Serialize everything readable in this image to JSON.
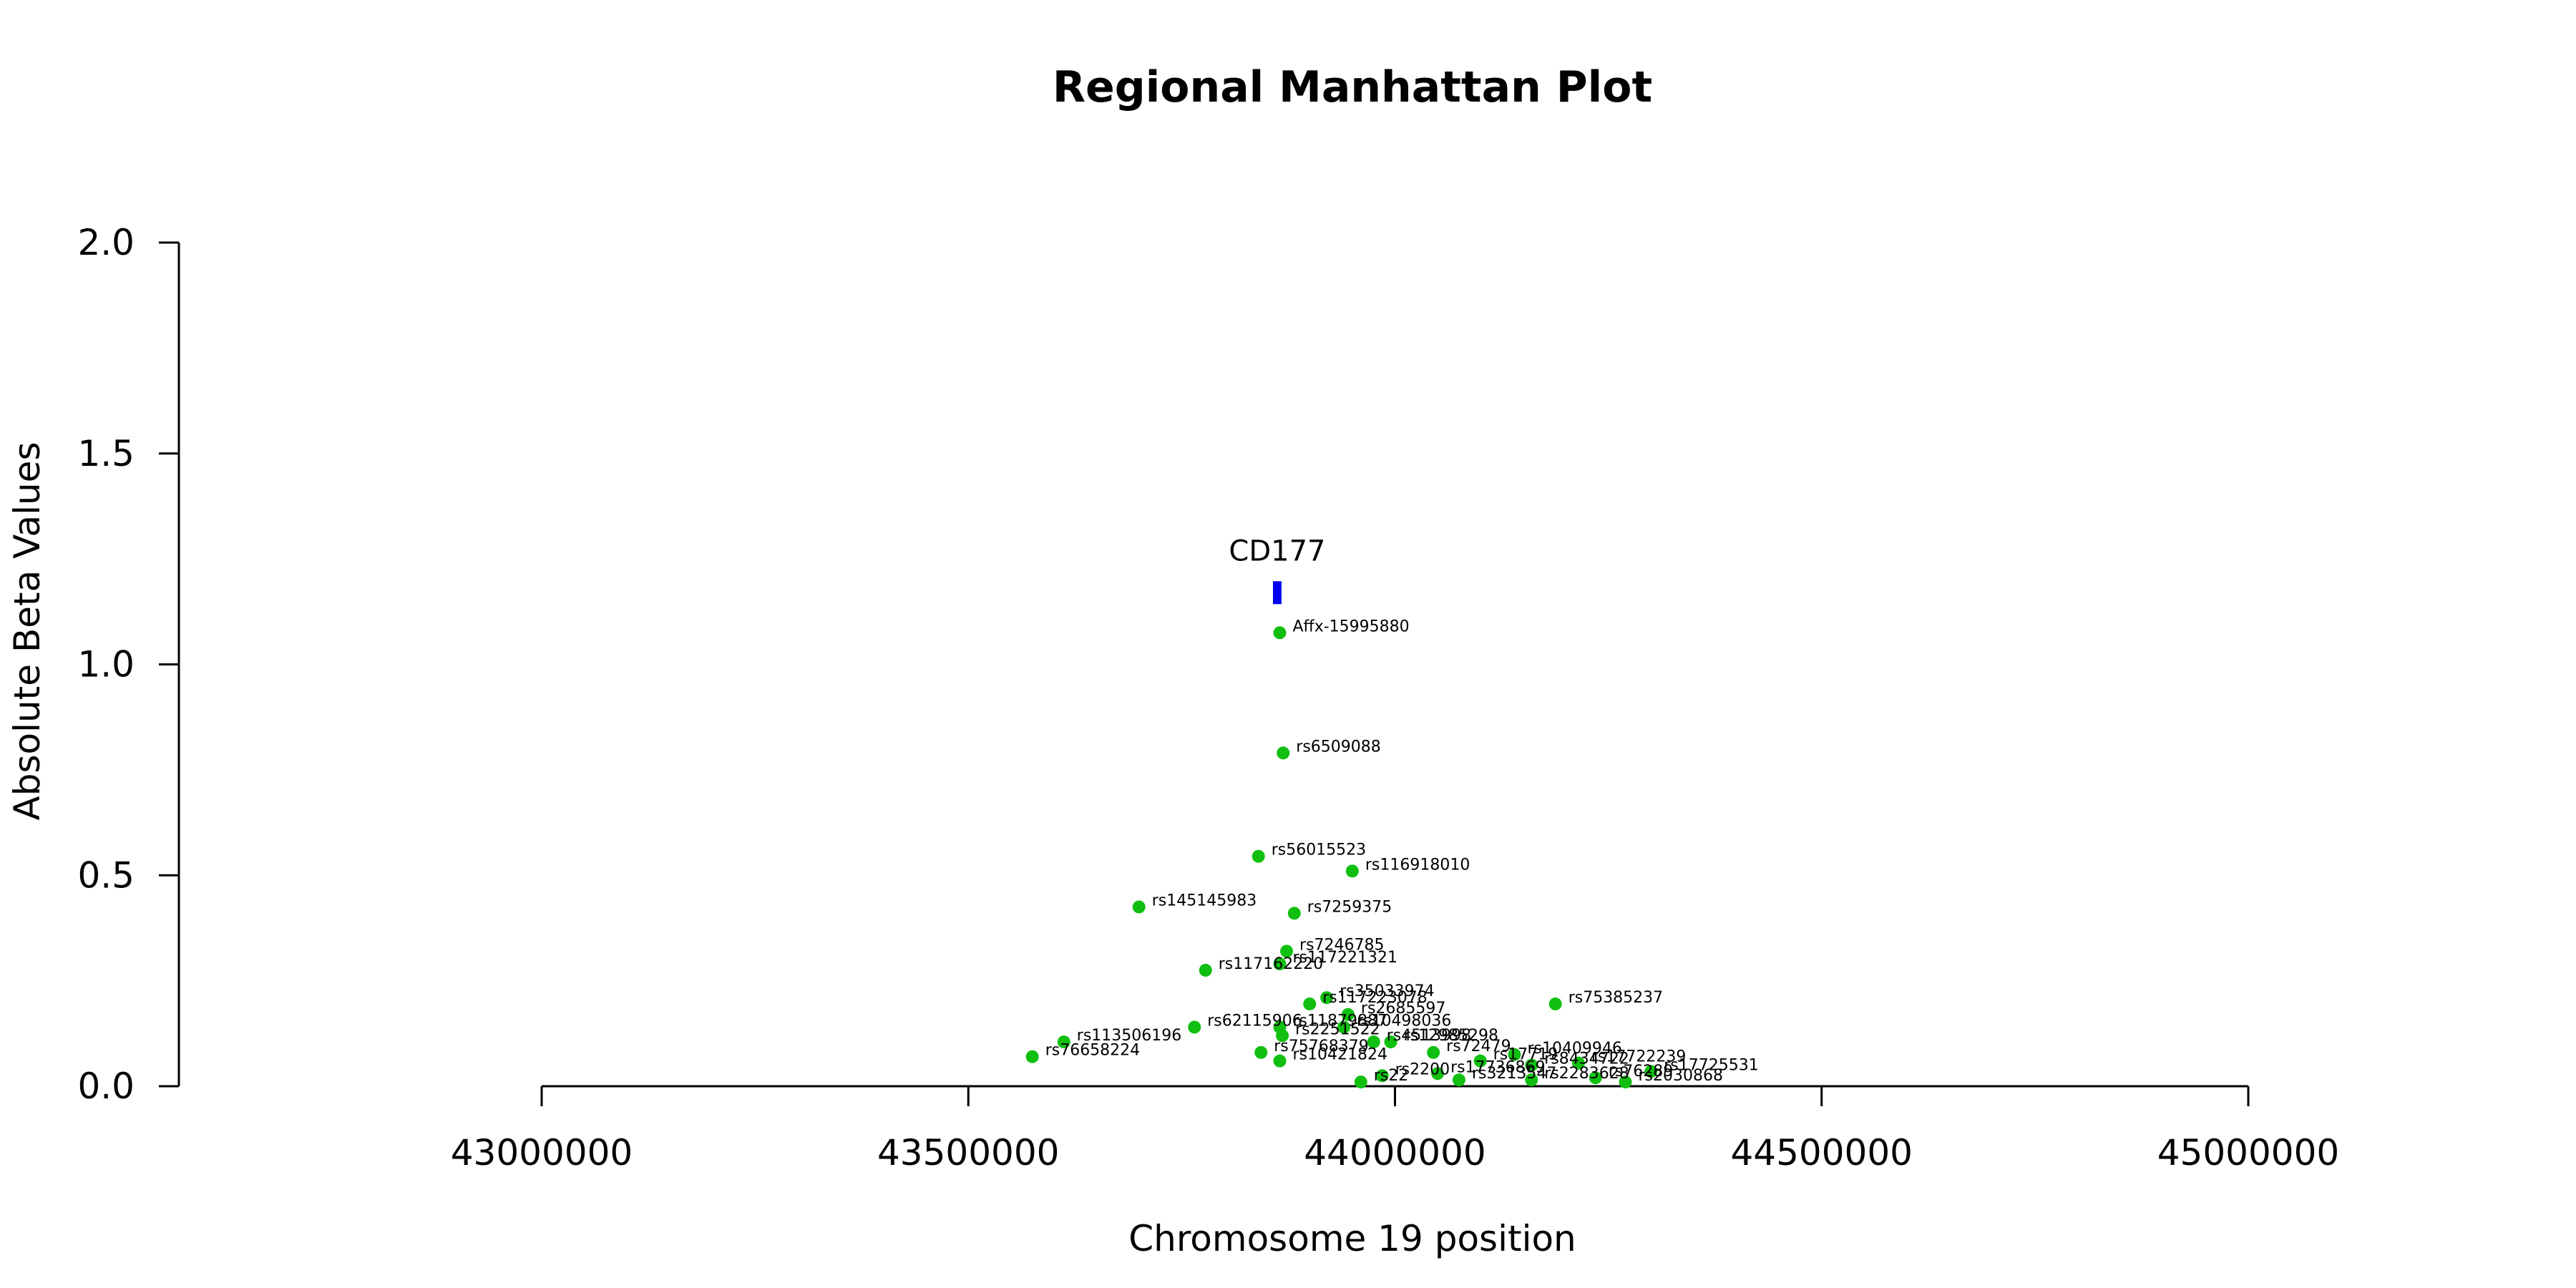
{
  "chart_data": {
    "type": "scatter",
    "title": "Regional Manhattan Plot",
    "xlabel": "Chromosome 19 position",
    "ylabel": "Absolute Beta Values",
    "xlim": [
      43000000,
      45000000
    ],
    "ylim": [
      0,
      2
    ],
    "x_ticks": [
      43000000,
      43500000,
      44000000,
      44500000,
      45000000
    ],
    "x_tick_labels": [
      "43000000",
      "43500000",
      "44000000",
      "44500000",
      "45000000"
    ],
    "y_ticks": [
      0,
      0.5,
      1,
      1.5,
      2
    ],
    "y_tick_labels": [
      "0.0",
      "0.5",
      "1.0",
      "1.5",
      "2.0"
    ],
    "point_color": "#10bf10",
    "gene_color": "#0000ee",
    "genes": [
      {
        "name": "CD177",
        "start": 43857000,
        "end": 43867000,
        "y": 1.17
      }
    ],
    "series": [
      {
        "points": [
          {
            "snp": "Affx-15995880",
            "x": 43865000,
            "y": 1.075
          },
          {
            "snp": "rs6509088",
            "x": 43869000,
            "y": 0.79
          },
          {
            "snp": "rs56015523",
            "x": 43840000,
            "y": 0.545
          },
          {
            "snp": "rs116918010",
            "x": 43950000,
            "y": 0.51
          },
          {
            "snp": "rs145145983",
            "x": 43700000,
            "y": 0.425
          },
          {
            "snp": "rs7259375",
            "x": 43882000,
            "y": 0.41
          },
          {
            "snp": "rs7246785",
            "x": 43873000,
            "y": 0.32
          },
          {
            "snp": "rs117221321",
            "x": 43865000,
            "y": 0.29
          },
          {
            "snp": "rs117162220",
            "x": 43778000,
            "y": 0.275
          },
          {
            "snp": "rs35033974",
            "x": 43920000,
            "y": 0.21
          },
          {
            "snp": "rs117223078",
            "x": 43900000,
            "y": 0.195
          },
          {
            "snp": "rs75385237",
            "x": 44188000,
            "y": 0.195
          },
          {
            "snp": "rs2685597",
            "x": 43945000,
            "y": 0.17
          },
          {
            "snp": "rs62115906",
            "x": 43765000,
            "y": 0.14
          },
          {
            "snp": "rs11879887",
            "x": 43865000,
            "y": 0.14
          },
          {
            "snp": "rs10498036",
            "x": 43940000,
            "y": 0.14
          },
          {
            "snp": "rs113506196",
            "x": 43612000,
            "y": 0.105
          },
          {
            "snp": "rs2251522",
            "x": 43868000,
            "y": 0.12
          },
          {
            "snp": "rs4513998",
            "x": 43975000,
            "y": 0.105
          },
          {
            "snp": "rs12985298",
            "x": 43995000,
            "y": 0.105
          },
          {
            "snp": "rs76658224",
            "x": 43575000,
            "y": 0.07
          },
          {
            "snp": "rs75768379",
            "x": 43843000,
            "y": 0.08
          },
          {
            "snp": "rs10421824",
            "x": 43865000,
            "y": 0.06
          },
          {
            "snp": "rs72479",
            "x": 44045000,
            "y": 0.08
          },
          {
            "snp": "rs10409946",
            "x": 44140000,
            "y": 0.075
          },
          {
            "snp": "rs17719",
            "x": 44100000,
            "y": 0.06
          },
          {
            "snp": "rs17722239",
            "x": 44215000,
            "y": 0.055
          },
          {
            "snp": "rs8434722",
            "x": 44160000,
            "y": 0.05
          },
          {
            "snp": "rs17725531",
            "x": 44300000,
            "y": 0.035
          },
          {
            "snp": "rs17736869",
            "x": 44050000,
            "y": 0.03
          },
          {
            "snp": "rs2200",
            "x": 43985000,
            "y": 0.025
          },
          {
            "snp": "rs3213547",
            "x": 44075000,
            "y": 0.015
          },
          {
            "snp": "rs2283628",
            "x": 44160000,
            "y": 0.015
          },
          {
            "snp": "rs76289",
            "x": 44235000,
            "y": 0.02
          },
          {
            "snp": "rs2030868",
            "x": 44270000,
            "y": 0.01
          },
          {
            "snp": "rs22",
            "x": 43960000,
            "y": 0.01
          }
        ]
      }
    ]
  }
}
